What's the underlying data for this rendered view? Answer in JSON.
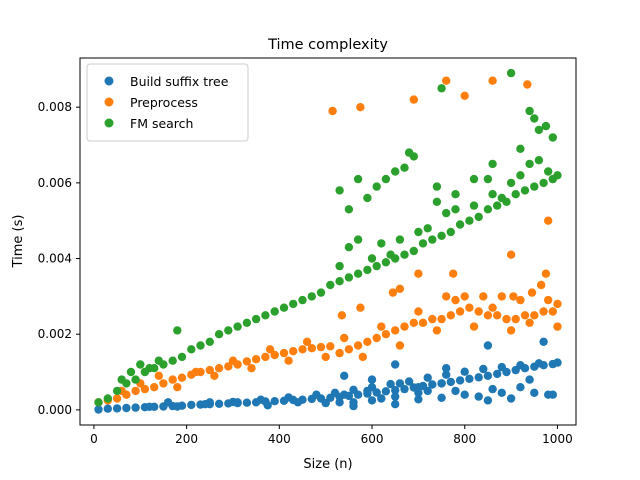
{
  "chart_data": {
    "type": "scatter",
    "title": "Time complexity",
    "xlabel": "Size (n)",
    "ylabel": "Time (s)",
    "xlim": [
      -30,
      1040
    ],
    "ylim": [
      -0.0004,
      0.0093
    ],
    "xticks": [
      0,
      200,
      400,
      600,
      800,
      1000
    ],
    "xtick_labels": [
      "0",
      "200",
      "400",
      "600",
      "800",
      "1000"
    ],
    "yticks": [
      0,
      0.002,
      0.004,
      0.006,
      0.008
    ],
    "ytick_labels": [
      "0.000",
      "0.002",
      "0.004",
      "0.006",
      "0.008"
    ],
    "grid": false,
    "legend_position": "upper-left",
    "series": [
      {
        "name": "Build suffix tree",
        "color": "#1f77b4",
        "points": [
          [
            10,
            1e-05
          ],
          [
            30,
            3e-05
          ],
          [
            50,
            4e-05
          ],
          [
            70,
            5e-05
          ],
          [
            90,
            6e-05
          ],
          [
            110,
            7e-05
          ],
          [
            130,
            8e-05
          ],
          [
            150,
            9e-05
          ],
          [
            170,
            0.0001
          ],
          [
            190,
            0.00011
          ],
          [
            210,
            0.00013
          ],
          [
            230,
            0.00014
          ],
          [
            250,
            0.00015
          ],
          [
            270,
            0.00016
          ],
          [
            290,
            0.00017
          ],
          [
            310,
            0.00018
          ],
          [
            330,
            0.00019
          ],
          [
            350,
            0.0002
          ],
          [
            370,
            0.00022
          ],
          [
            390,
            0.00023
          ],
          [
            410,
            0.00024
          ],
          [
            430,
            0.00026
          ],
          [
            450,
            0.00027
          ],
          [
            470,
            0.00029
          ],
          [
            490,
            0.0003
          ],
          [
            510,
            0.00032
          ],
          [
            530,
            0.00034
          ],
          [
            550,
            0.00037
          ],
          [
            570,
            0.0004
          ],
          [
            590,
            0.00043
          ],
          [
            610,
            0.00046
          ],
          [
            630,
            0.00049
          ],
          [
            650,
            0.00052
          ],
          [
            670,
            0.00055
          ],
          [
            690,
            0.00059
          ],
          [
            710,
            0.00063
          ],
          [
            730,
            0.00067
          ],
          [
            750,
            0.0007
          ],
          [
            770,
            0.00074
          ],
          [
            790,
            0.00078
          ],
          [
            810,
            0.00082
          ],
          [
            830,
            0.00086
          ],
          [
            850,
            0.0009
          ],
          [
            870,
            0.00095
          ],
          [
            890,
            0.001
          ],
          [
            910,
            0.00105
          ],
          [
            930,
            0.0011
          ],
          [
            950,
            0.00114
          ],
          [
            970,
            0.00118
          ],
          [
            990,
            0.00121
          ],
          [
            120,
            8e-05
          ],
          [
            180,
            9e-05
          ],
          [
            240,
            0.00015
          ],
          [
            300,
            0.00021
          ],
          [
            360,
            0.00027
          ],
          [
            420,
            0.00033
          ],
          [
            480,
            0.0004
          ],
          [
            520,
            0.00045
          ],
          [
            560,
            0.00053
          ],
          [
            600,
            0.0006
          ],
          [
            640,
            0.00068
          ],
          [
            680,
            0.00075
          ],
          [
            720,
            0.00085
          ],
          [
            760,
            0.00093
          ],
          [
            800,
            0.00101
          ],
          [
            840,
            0.00108
          ],
          [
            880,
            0.00113
          ],
          [
            920,
            0.00118
          ],
          [
            960,
            0.00123
          ],
          [
            1000,
            0.00125
          ],
          [
            530,
            0.0002
          ],
          [
            560,
            0.0002
          ],
          [
            600,
            0.00025
          ],
          [
            620,
            0.0003
          ],
          [
            650,
            0.00035
          ],
          [
            700,
            0.00028
          ],
          [
            750,
            0.00032
          ],
          [
            800,
            0.0004
          ],
          [
            850,
            0.00025
          ],
          [
            900,
            0.0003
          ],
          [
            950,
            0.00045
          ],
          [
            980,
            0.0004
          ],
          [
            540,
            0.0009
          ],
          [
            600,
            0.0008
          ],
          [
            650,
            0.0012
          ],
          [
            700,
            0.0006
          ],
          [
            750,
            0.0007
          ],
          [
            760,
            0.0011
          ],
          [
            850,
            0.0017
          ],
          [
            970,
            0.0018
          ],
          [
            160,
            0.0002
          ],
          [
            250,
            0.0002
          ],
          [
            310,
            0.0002
          ],
          [
            375,
            0.00012
          ],
          [
            440,
            0.0002
          ],
          [
            500,
            0.00018
          ],
          [
            540,
            0.0004
          ],
          [
            590,
            0.0005
          ],
          [
            660,
            0.0007
          ],
          [
            720,
            0.0005
          ],
          [
            780,
            0.0005
          ],
          [
            860,
            0.00055
          ],
          [
            920,
            0.0006
          ],
          [
            940,
            0.0008
          ],
          [
            990,
            0.0004
          ],
          [
            560,
            0.0001
          ],
          [
            650,
            0.00015
          ],
          [
            700,
            0.00045
          ],
          [
            830,
            0.00035
          ],
          [
            880,
            0.00045
          ]
        ]
      },
      {
        "name": "Preprocess",
        "color": "#ff7f0e",
        "points": [
          [
            10,
            0.0002
          ],
          [
            30,
            0.00025
          ],
          [
            50,
            0.0003
          ],
          [
            70,
            0.0004
          ],
          [
            90,
            0.0005
          ],
          [
            110,
            0.00055
          ],
          [
            130,
            0.0006
          ],
          [
            150,
            0.0007
          ],
          [
            170,
            0.0008
          ],
          [
            190,
            0.00085
          ],
          [
            210,
            0.00093
          ],
          [
            230,
            0.001
          ],
          [
            250,
            0.00105
          ],
          [
            270,
            0.0011
          ],
          [
            290,
            0.00115
          ],
          [
            310,
            0.0012
          ],
          [
            330,
            0.00128
          ],
          [
            350,
            0.00134
          ],
          [
            370,
            0.0014
          ],
          [
            390,
            0.00145
          ],
          [
            410,
            0.0015
          ],
          [
            430,
            0.00155
          ],
          [
            450,
            0.0016
          ],
          [
            470,
            0.00163
          ],
          [
            490,
            0.00166
          ],
          [
            510,
            0.00168
          ],
          [
            530,
            0.0015
          ],
          [
            550,
            0.0016
          ],
          [
            570,
            0.0017
          ],
          [
            590,
            0.0018
          ],
          [
            610,
            0.0019
          ],
          [
            630,
            0.002
          ],
          [
            650,
            0.0021
          ],
          [
            670,
            0.0022
          ],
          [
            690,
            0.0023
          ],
          [
            710,
            0.0023
          ],
          [
            730,
            0.0024
          ],
          [
            750,
            0.0024
          ],
          [
            770,
            0.0025
          ],
          [
            790,
            0.0026
          ],
          [
            810,
            0.0027
          ],
          [
            830,
            0.0026
          ],
          [
            850,
            0.0025
          ],
          [
            870,
            0.0025
          ],
          [
            890,
            0.0024
          ],
          [
            910,
            0.0024
          ],
          [
            930,
            0.0025
          ],
          [
            950,
            0.0025
          ],
          [
            970,
            0.0026
          ],
          [
            990,
            0.0026
          ],
          [
            60,
            0.0005
          ],
          [
            100,
            0.0007
          ],
          [
            140,
            0.0009
          ],
          [
            180,
            0.0006
          ],
          [
            220,
            0.001
          ],
          [
            260,
            0.0009
          ],
          [
            300,
            0.0013
          ],
          [
            340,
            0.0011
          ],
          [
            380,
            0.0016
          ],
          [
            420,
            0.0013
          ],
          [
            460,
            0.0018
          ],
          [
            500,
            0.0014
          ],
          [
            540,
            0.0019
          ],
          [
            580,
            0.0014
          ],
          [
            620,
            0.0022
          ],
          [
            660,
            0.0017
          ],
          [
            700,
            0.0026
          ],
          [
            740,
            0.0021
          ],
          [
            780,
            0.0029
          ],
          [
            820,
            0.0022
          ],
          [
            860,
            0.0027
          ],
          [
            900,
            0.0021
          ],
          [
            940,
            0.0023
          ],
          [
            980,
            0.0029
          ],
          [
            1000,
            0.0028
          ],
          [
            760,
            0.003
          ],
          [
            800,
            0.003
          ],
          [
            840,
            0.003
          ],
          [
            880,
            0.003
          ],
          [
            920,
            0.0029
          ],
          [
            515,
            0.0079
          ],
          [
            575,
            0.008
          ],
          [
            690,
            0.0082
          ],
          [
            760,
            0.0087
          ],
          [
            800,
            0.0083
          ],
          [
            860,
            0.0087
          ],
          [
            935,
            0.0086
          ],
          [
            980,
            0.005
          ],
          [
            900,
            0.0041
          ],
          [
            975,
            0.0036
          ],
          [
            775,
            0.0036
          ],
          [
            645,
            0.0031
          ],
          [
            660,
            0.0032
          ],
          [
            575,
            0.0027
          ],
          [
            535,
            0.0025
          ],
          [
            905,
            0.003
          ],
          [
            945,
            0.0031
          ],
          [
            965,
            0.0033
          ],
          [
            700,
            0.0036
          ],
          [
            1000,
            0.0022
          ]
        ]
      },
      {
        "name": "FM search",
        "color": "#2ca02c",
        "points": [
          [
            10,
            0.0002
          ],
          [
            30,
            0.0003
          ],
          [
            50,
            0.0005
          ],
          [
            70,
            0.0007
          ],
          [
            90,
            0.0008
          ],
          [
            110,
            0.001
          ],
          [
            130,
            0.0011
          ],
          [
            150,
            0.0012
          ],
          [
            170,
            0.0013
          ],
          [
            190,
            0.0014
          ],
          [
            210,
            0.0016
          ],
          [
            230,
            0.0017
          ],
          [
            250,
            0.0018
          ],
          [
            270,
            0.002
          ],
          [
            290,
            0.0021
          ],
          [
            310,
            0.0022
          ],
          [
            330,
            0.0023
          ],
          [
            350,
            0.0024
          ],
          [
            370,
            0.0025
          ],
          [
            390,
            0.0026
          ],
          [
            410,
            0.0027
          ],
          [
            430,
            0.0028
          ],
          [
            450,
            0.0029
          ],
          [
            470,
            0.003
          ],
          [
            490,
            0.0031
          ],
          [
            510,
            0.0033
          ],
          [
            530,
            0.0034
          ],
          [
            550,
            0.0035
          ],
          [
            570,
            0.0036
          ],
          [
            590,
            0.0037
          ],
          [
            610,
            0.0038
          ],
          [
            630,
            0.0039
          ],
          [
            650,
            0.004
          ],
          [
            670,
            0.0041
          ],
          [
            690,
            0.0042
          ],
          [
            710,
            0.0044
          ],
          [
            730,
            0.0045
          ],
          [
            750,
            0.0046
          ],
          [
            770,
            0.0047
          ],
          [
            790,
            0.0049
          ],
          [
            810,
            0.005
          ],
          [
            830,
            0.0051
          ],
          [
            850,
            0.0053
          ],
          [
            870,
            0.0054
          ],
          [
            890,
            0.0055
          ],
          [
            910,
            0.0057
          ],
          [
            930,
            0.0058
          ],
          [
            950,
            0.0059
          ],
          [
            970,
            0.006
          ],
          [
            990,
            0.0061
          ],
          [
            60,
            0.0008
          ],
          [
            80,
            0.001
          ],
          [
            100,
            0.0012
          ],
          [
            120,
            0.0011
          ],
          [
            140,
            0.0013
          ],
          [
            180,
            0.0021
          ],
          [
            530,
            0.0038
          ],
          [
            550,
            0.0043
          ],
          [
            570,
            0.0045
          ],
          [
            600,
            0.004
          ],
          [
            620,
            0.0044
          ],
          [
            640,
            0.0041
          ],
          [
            660,
            0.0045
          ],
          [
            700,
            0.0047
          ],
          [
            720,
            0.0048
          ],
          [
            740,
            0.0055
          ],
          [
            760,
            0.0052
          ],
          [
            780,
            0.0053
          ],
          [
            820,
            0.0054
          ],
          [
            860,
            0.0057
          ],
          [
            880,
            0.0056
          ],
          [
            900,
            0.006
          ],
          [
            920,
            0.0062
          ],
          [
            940,
            0.0065
          ],
          [
            960,
            0.0066
          ],
          [
            980,
            0.0063
          ],
          [
            1000,
            0.0062
          ],
          [
            550,
            0.0053
          ],
          [
            570,
            0.0061
          ],
          [
            530,
            0.0058
          ],
          [
            590,
            0.0056
          ],
          [
            610,
            0.0059
          ],
          [
            630,
            0.0061
          ],
          [
            650,
            0.0063
          ],
          [
            670,
            0.0064
          ],
          [
            680,
            0.0068
          ],
          [
            690,
            0.0067
          ],
          [
            740,
            0.0059
          ],
          [
            780,
            0.0057
          ],
          [
            850,
            0.0061
          ],
          [
            750,
            0.0085
          ],
          [
            900,
            0.0089
          ],
          [
            940,
            0.0079
          ],
          [
            960,
            0.0074
          ],
          [
            975,
            0.0075
          ],
          [
            950,
            0.0077
          ],
          [
            990,
            0.0072
          ],
          [
            920,
            0.0069
          ],
          [
            860,
            0.0065
          ],
          [
            820,
            0.0061
          ]
        ]
      }
    ]
  }
}
